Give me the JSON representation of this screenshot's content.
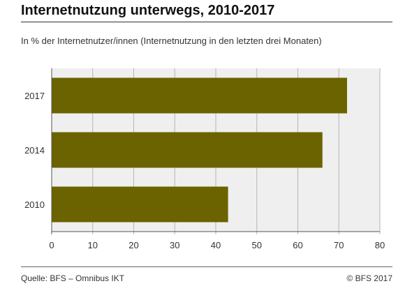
{
  "title": "Internetnutzung unterwegs, 2010-2017",
  "subtitle": "In % der Internetnutzer/innen (Internetnutzung in den letzten drei Monaten)",
  "footer": {
    "source": "Quelle: BFS – Omnibus IKT",
    "copyright": "© BFS 2017"
  },
  "colors": {
    "bar": "#6b6300",
    "plot_background": "#efefef",
    "grid": "#b5b5b5"
  },
  "chart_data": {
    "type": "bar",
    "orientation": "horizontal",
    "categories": [
      "2017",
      "2014",
      "2010"
    ],
    "values": [
      72,
      66,
      43
    ],
    "xlim": [
      0,
      80
    ],
    "xticks": [
      0,
      10,
      20,
      30,
      40,
      50,
      60,
      70,
      80
    ],
    "grid": true
  }
}
